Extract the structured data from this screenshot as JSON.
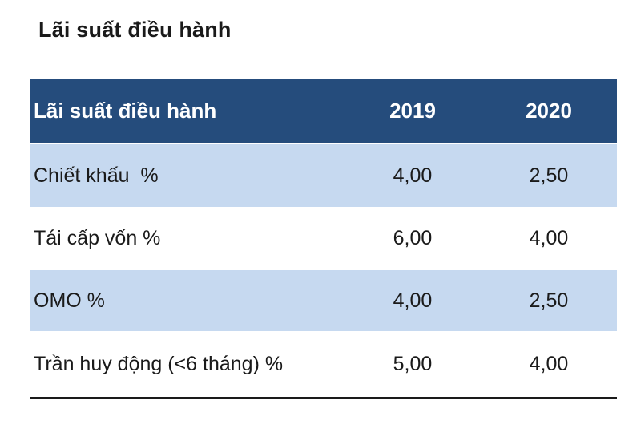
{
  "title": "Lãi suất điều hành",
  "colors": {
    "header_bg": "#254C7C",
    "header_text": "#FFFFFF",
    "row_alt_bg": "#C6D9F0",
    "body_text": "#1A1A1A",
    "bottom_rule": "#1A1A1A"
  },
  "table": {
    "header": {
      "label": "Lãi suất điều hành",
      "y2019": "2019",
      "y2020": "2020"
    },
    "rows": [
      {
        "label": "Chiết khấu  %",
        "y2019": "4,00",
        "y2020": "2,50"
      },
      {
        "label": "Tái cấp vốn %",
        "y2019": "6,00",
        "y2020": "4,00"
      },
      {
        "label": "OMO %",
        "y2019": "4,00",
        "y2020": "2,50"
      },
      {
        "label": "Trần huy động (<6 tháng) %",
        "y2019": "5,00",
        "y2020": "4,00"
      }
    ]
  },
  "chart_data": {
    "type": "table",
    "title": "Lãi suất điều hành",
    "columns": [
      "Lãi suất điều hành",
      "2019",
      "2020"
    ],
    "categories": [
      "Chiết khấu %",
      "Tái cấp vốn %",
      "OMO %",
      "Trần huy động (<6 tháng) %"
    ],
    "series": [
      {
        "name": "2019",
        "values": [
          4.0,
          6.0,
          4.0,
          5.0
        ]
      },
      {
        "name": "2020",
        "values": [
          2.5,
          4.0,
          2.5,
          4.0
        ]
      }
    ],
    "unit": "%",
    "decimal_separator": ",",
    "layout_hints": {
      "header_style": "dark-blue banded",
      "zebra_striping": "alternating light-blue / white starting with light-blue",
      "bottom_rule": true
    }
  }
}
